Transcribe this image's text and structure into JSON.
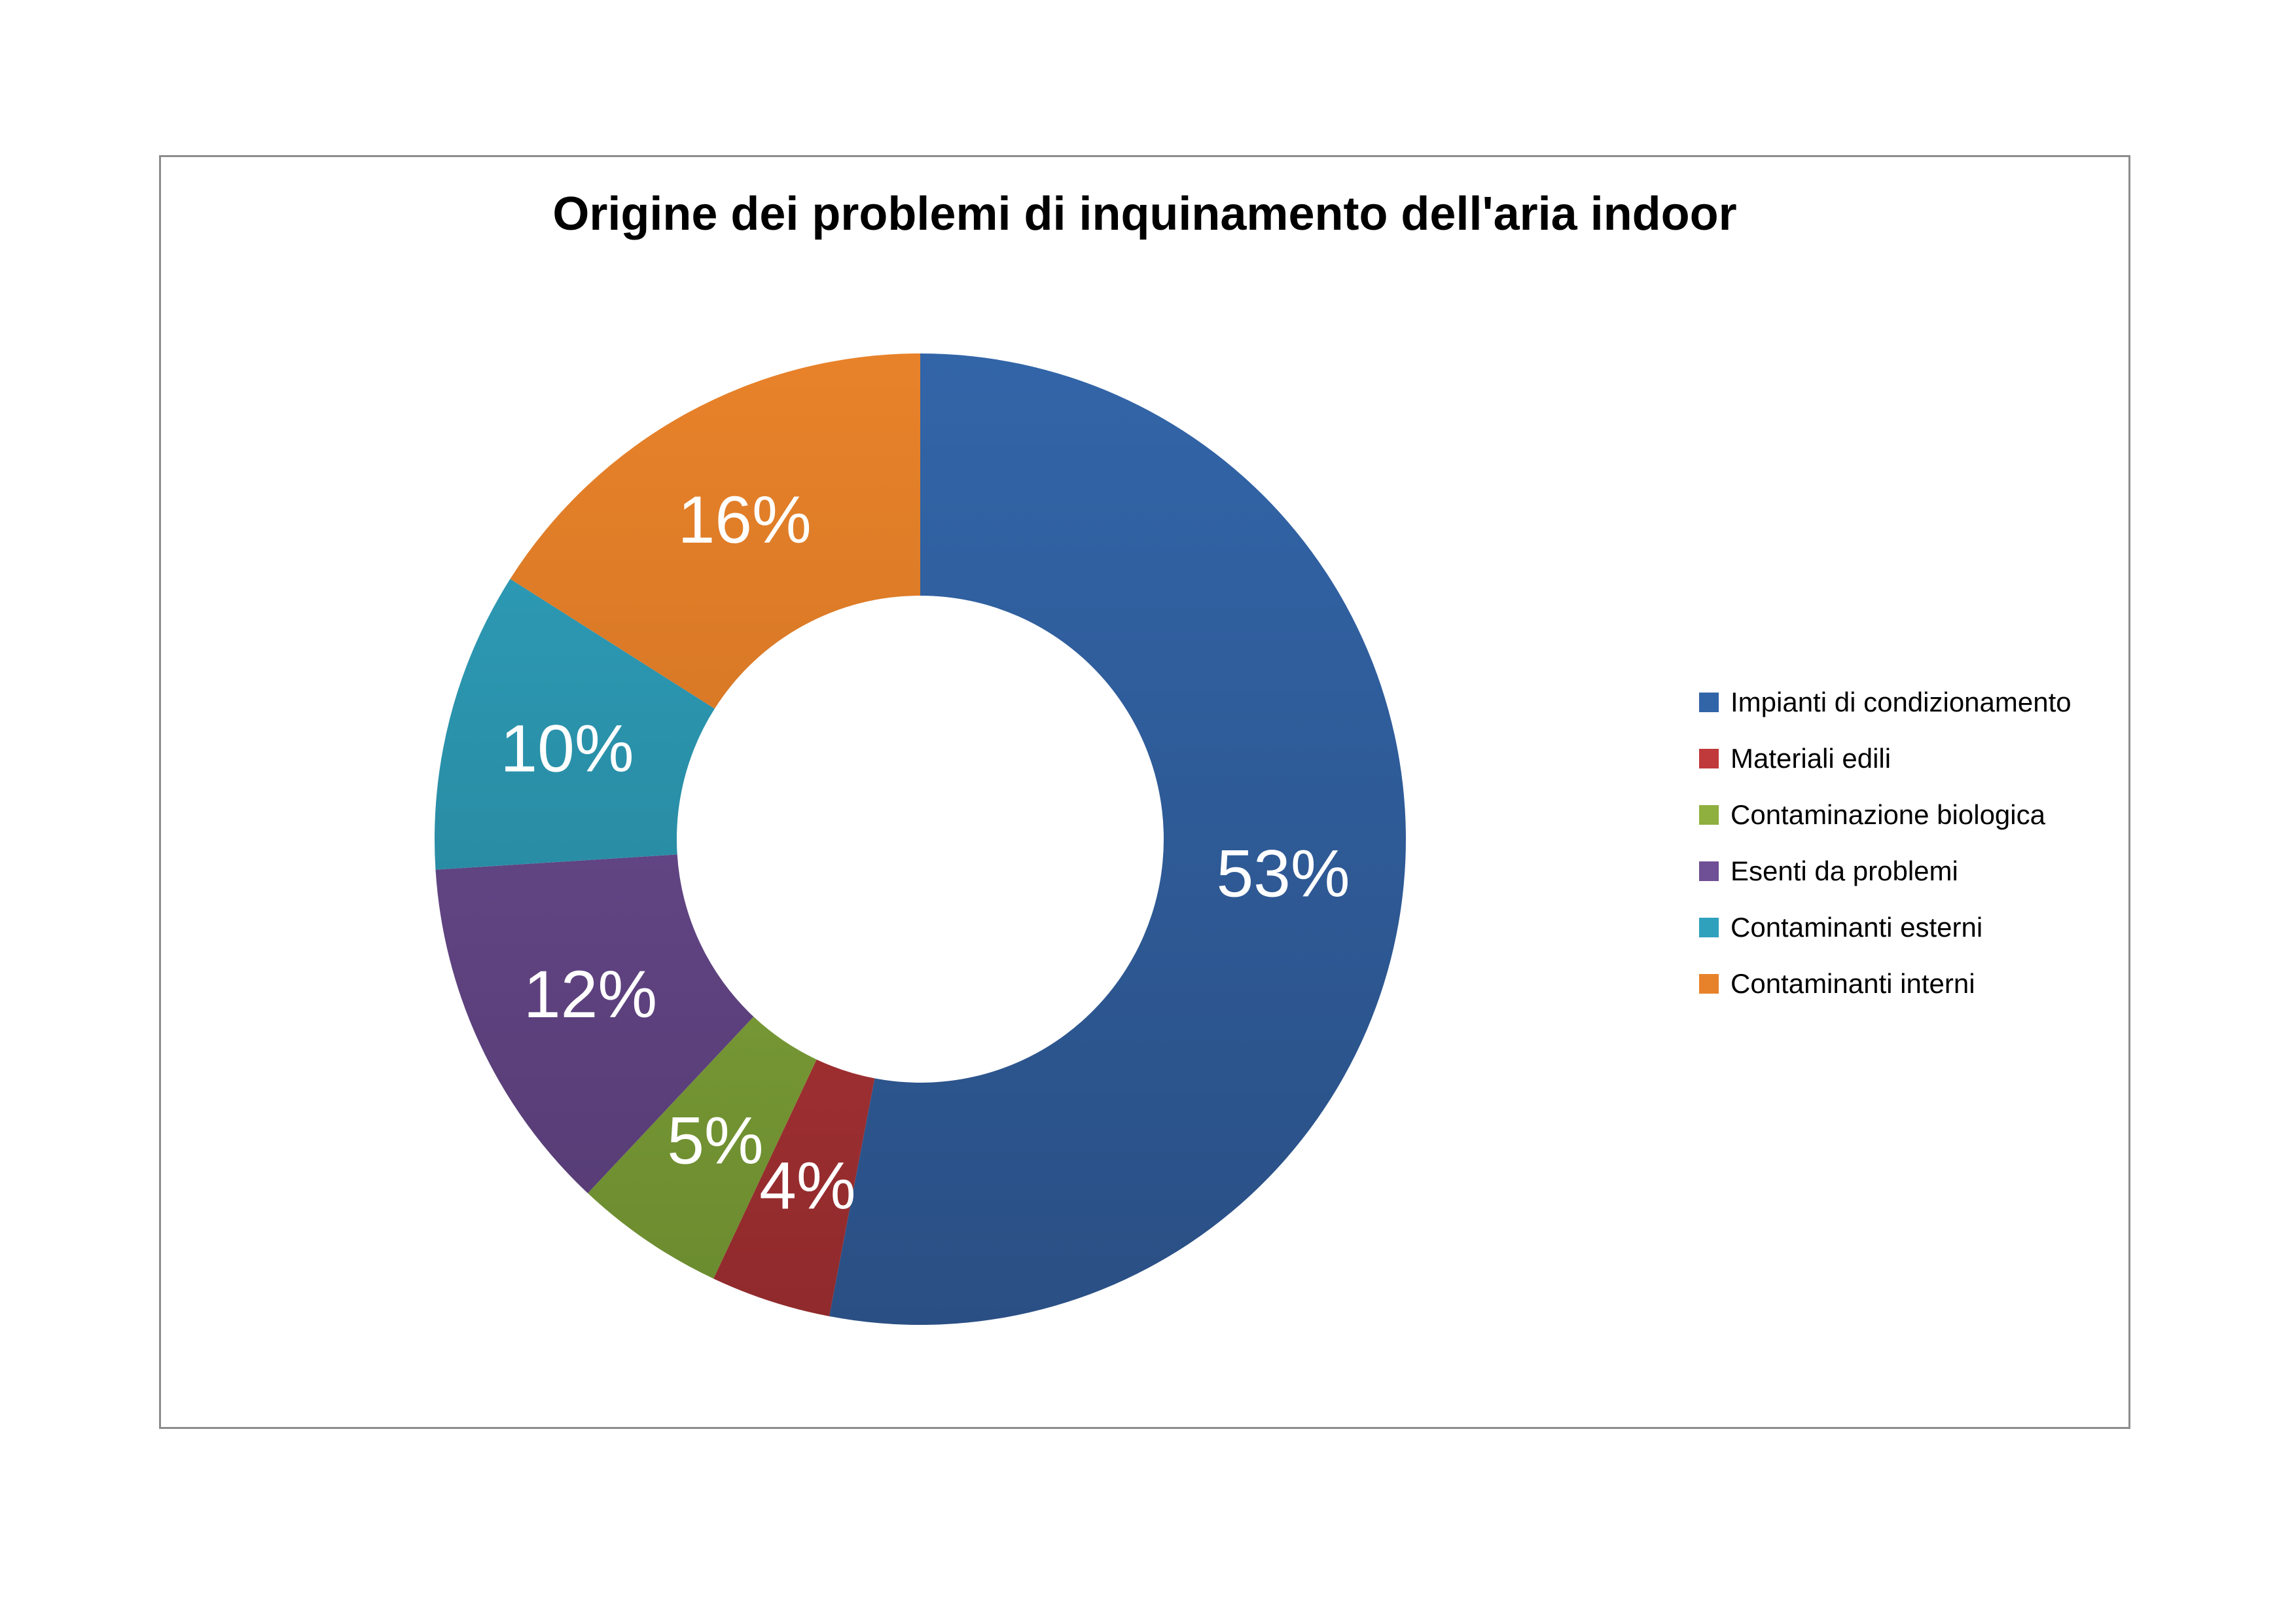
{
  "chart_data": {
    "type": "pie",
    "title": "Origine dei problemi di inquinamento dell'aria indoor",
    "slices": [
      {
        "name": "Impianti di condizionamento",
        "value": 53,
        "label": "53%",
        "color": "#3265a8",
        "color_dark": "#2a4f84"
      },
      {
        "name": "Materiali edili",
        "value": 4,
        "label": "4%",
        "color": "#c0393b",
        "color_dark": "#8f2a2c"
      },
      {
        "name": "Contaminazione biologica",
        "value": 5,
        "label": "5%",
        "color": "#8fb03e",
        "color_dark": "#6a8a2f"
      },
      {
        "name": "Esenti da problemi",
        "value": 12,
        "label": "12%",
        "color": "#6f4f95",
        "color_dark": "#543a72"
      },
      {
        "name": "Contaminanti esterni",
        "value": 10,
        "label": "10%",
        "color": "#2fa1bd",
        "color_dark": "#247a8f"
      },
      {
        "name": "Contaminanti interni",
        "value": 16,
        "label": "16%",
        "color": "#e8822a",
        "color_dark": "#bf6920"
      }
    ],
    "hole": true,
    "legend_position": "right"
  }
}
